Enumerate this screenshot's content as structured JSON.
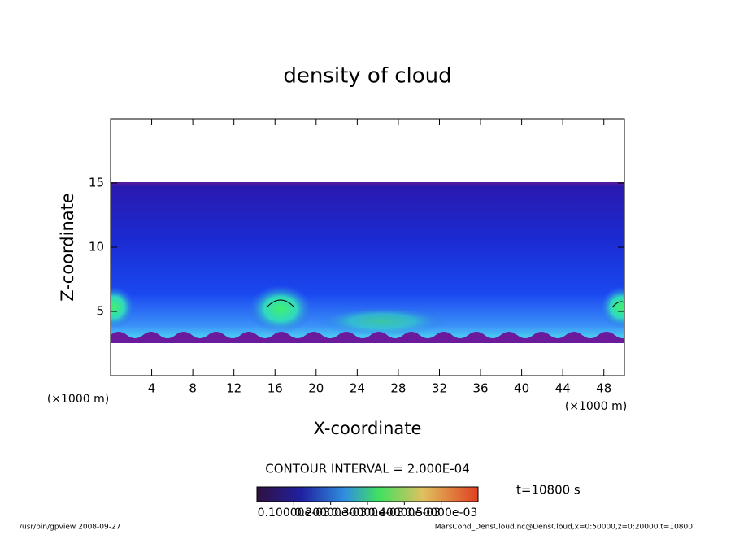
{
  "chart_data": {
    "type": "contour",
    "title": "density of cloud",
    "x_label": "X-coordinate",
    "y_label": "Z-coordinate",
    "x_unit": "(×1000 m)",
    "y_unit": "(×1000 m)",
    "xlim": [
      0,
      50
    ],
    "xticks": [
      4,
      8,
      12,
      16,
      20,
      24,
      28,
      32,
      36,
      40,
      44,
      48
    ],
    "ylim": [
      0,
      20
    ],
    "yticks": [
      5,
      10,
      15
    ],
    "contour_interval": "CONTOUR INTERVAL = 2.000E-04",
    "time_label": "t=10800 s",
    "colorbar": {
      "lim": [
        0,
        0.0006
      ],
      "ticks": [
        {
          "value": 0.0001,
          "label": "0.10000e-03"
        },
        {
          "value": 0.0002,
          "label": "0.20000e-03"
        },
        {
          "value": 0.0003,
          "label": "0.30000e-03"
        },
        {
          "value": 0.0004,
          "label": "0.40000e-03"
        },
        {
          "value": 0.0005,
          "label": "0.50000e-03"
        }
      ]
    },
    "footer_left": "/usr/bin/gpview  2008-09-27",
    "footer_right": "MarsCond_DensCloud.nc@DensCloud,x=0:50000,z=0:20000,t=10800"
  }
}
